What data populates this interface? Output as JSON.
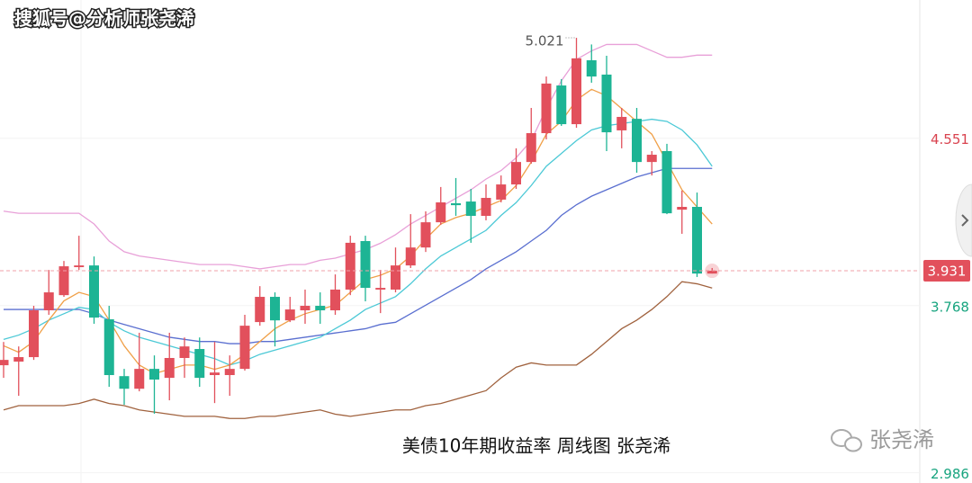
{
  "chart_data": {
    "type": "candlestick",
    "title": "美债10年期收益率 周线图  张尧浠",
    "watermark": "搜狐号@分析师张尧浠",
    "brand": "张尧浠",
    "up_color": "#e2505c",
    "down_color": "#1db494",
    "ylim": [
      2.938,
      5.198
    ],
    "yticks": [
      4.551,
      3.768,
      2.986
    ],
    "ytick_colors": [
      "#d9434f",
      "#18a47f",
      "#18a47f"
    ],
    "grid": true,
    "open": [
      3.489,
      3.506,
      3.527,
      3.746,
      3.817,
      3.948,
      3.956,
      3.704,
      3.438,
      3.379,
      3.472,
      3.43,
      3.523,
      3.565,
      3.443,
      3.443,
      3.472,
      3.691,
      3.809,
      3.699,
      3.746,
      3.767,
      3.746,
      3.843,
      4.07,
      3.843,
      3.843,
      3.956,
      4.04,
      4.158,
      4.247,
      4.255,
      4.188,
      4.264,
      4.335,
      4.44,
      4.575,
      4.798,
      4.617,
      4.916,
      4.849,
      4.588,
      4.642,
      4.44,
      4.491,
      4.217,
      4.23,
      3.918
    ],
    "high": [
      3.598,
      3.577,
      3.767,
      3.935,
      3.977,
      4.095,
      3.998,
      3.767,
      3.472,
      3.641,
      3.535,
      3.641,
      3.619,
      3.619,
      3.598,
      3.535,
      3.725,
      3.859,
      3.83,
      3.809,
      3.843,
      3.83,
      3.914,
      4.095,
      4.095,
      3.935,
      4.04,
      4.196,
      4.209,
      4.323,
      4.365,
      4.314,
      4.335,
      4.377,
      4.504,
      4.693,
      4.84,
      4.828,
      5.021,
      4.99,
      4.937,
      4.693,
      4.693,
      4.491,
      4.525,
      4.306,
      4.297,
      3.944
    ],
    "low": [
      3.43,
      3.346,
      3.514,
      3.725,
      3.809,
      3.935,
      3.683,
      3.388,
      3.304,
      3.367,
      3.262,
      3.325,
      3.43,
      3.388,
      3.312,
      3.346,
      3.464,
      3.674,
      3.577,
      3.691,
      3.683,
      3.683,
      3.725,
      3.817,
      3.788,
      3.733,
      3.83,
      3.944,
      4.019,
      4.146,
      4.188,
      4.062,
      4.167,
      4.251,
      4.314,
      4.432,
      4.546,
      4.609,
      4.6,
      4.811,
      4.491,
      4.504,
      4.39,
      4.377,
      4.196,
      4.104,
      3.902,
      3.918
    ],
    "close": [
      3.514,
      3.527,
      3.746,
      3.83,
      3.952,
      3.956,
      3.712,
      3.443,
      3.379,
      3.472,
      3.422,
      3.523,
      3.577,
      3.43,
      3.455,
      3.472,
      3.674,
      3.809,
      3.699,
      3.75,
      3.767,
      3.746,
      3.843,
      4.062,
      3.851,
      3.851,
      3.956,
      4.04,
      4.158,
      4.251,
      4.238,
      4.188,
      4.272,
      4.335,
      4.44,
      4.575,
      4.807,
      4.617,
      4.925,
      4.84,
      4.579,
      4.651,
      4.44,
      4.474,
      4.2,
      4.23,
      3.918,
      3.931
    ],
    "indicators": [
      {
        "color": "#e8a0d8",
        "values": [
          4.21,
          4.2,
          4.2,
          4.2,
          4.2,
          4.2,
          4.15,
          4.07,
          4.02,
          4.0,
          3.99,
          3.98,
          3.97,
          3.96,
          3.96,
          3.96,
          3.95,
          3.94,
          3.95,
          3.96,
          3.96,
          3.98,
          3.99,
          4.01,
          4.03,
          4.06,
          4.1,
          4.15,
          4.19,
          4.23,
          4.27,
          4.31,
          4.36,
          4.4,
          4.46,
          4.54,
          4.69,
          4.82,
          4.92,
          4.96,
          4.99,
          4.99,
          4.99,
          4.96,
          4.93,
          4.93,
          4.94,
          4.94
        ]
      },
      {
        "color": "#a0623e",
        "values": [
          3.28,
          3.3,
          3.3,
          3.3,
          3.3,
          3.31,
          3.33,
          3.31,
          3.3,
          3.28,
          3.27,
          3.26,
          3.25,
          3.25,
          3.25,
          3.24,
          3.24,
          3.25,
          3.25,
          3.26,
          3.27,
          3.28,
          3.26,
          3.25,
          3.26,
          3.27,
          3.28,
          3.28,
          3.3,
          3.31,
          3.33,
          3.35,
          3.37,
          3.43,
          3.48,
          3.5,
          3.49,
          3.49,
          3.49,
          3.54,
          3.6,
          3.66,
          3.7,
          3.75,
          3.81,
          3.88,
          3.87,
          3.85
        ]
      },
      {
        "color": "#5a6fd0",
        "values": [
          3.75,
          3.75,
          3.75,
          3.75,
          3.75,
          3.75,
          3.73,
          3.7,
          3.68,
          3.66,
          3.64,
          3.62,
          3.61,
          3.6,
          3.6,
          3.59,
          3.59,
          3.6,
          3.6,
          3.61,
          3.62,
          3.63,
          3.64,
          3.65,
          3.66,
          3.68,
          3.69,
          3.73,
          3.77,
          3.81,
          3.85,
          3.89,
          3.94,
          3.98,
          4.02,
          4.07,
          4.12,
          4.19,
          4.24,
          4.28,
          4.31,
          4.34,
          4.37,
          4.39,
          4.41,
          4.41,
          4.41,
          4.41
        ]
      },
      {
        "color": "#4cc9d6",
        "values": [
          3.61,
          3.63,
          3.66,
          3.7,
          3.73,
          3.76,
          3.75,
          3.69,
          3.65,
          3.62,
          3.6,
          3.58,
          3.56,
          3.54,
          3.52,
          3.49,
          3.51,
          3.54,
          3.56,
          3.58,
          3.6,
          3.62,
          3.66,
          3.7,
          3.75,
          3.78,
          3.81,
          3.87,
          3.94,
          4.0,
          4.04,
          4.08,
          4.12,
          4.19,
          4.25,
          4.33,
          4.42,
          4.48,
          4.54,
          4.59,
          4.61,
          4.62,
          4.63,
          4.64,
          4.63,
          4.59,
          4.52,
          4.42
        ]
      },
      {
        "color": "#f0a048",
        "values": [
          3.58,
          3.55,
          3.6,
          3.7,
          3.79,
          3.83,
          3.81,
          3.7,
          3.58,
          3.49,
          3.45,
          3.47,
          3.49,
          3.49,
          3.47,
          3.49,
          3.54,
          3.6,
          3.66,
          3.7,
          3.73,
          3.75,
          3.77,
          3.83,
          3.89,
          3.91,
          3.94,
          4.0,
          4.08,
          4.15,
          4.18,
          4.2,
          4.23,
          4.26,
          4.33,
          4.44,
          4.57,
          4.63,
          4.73,
          4.78,
          4.75,
          4.69,
          4.63,
          4.57,
          4.44,
          4.31,
          4.23,
          4.15
        ]
      }
    ]
  }
}
